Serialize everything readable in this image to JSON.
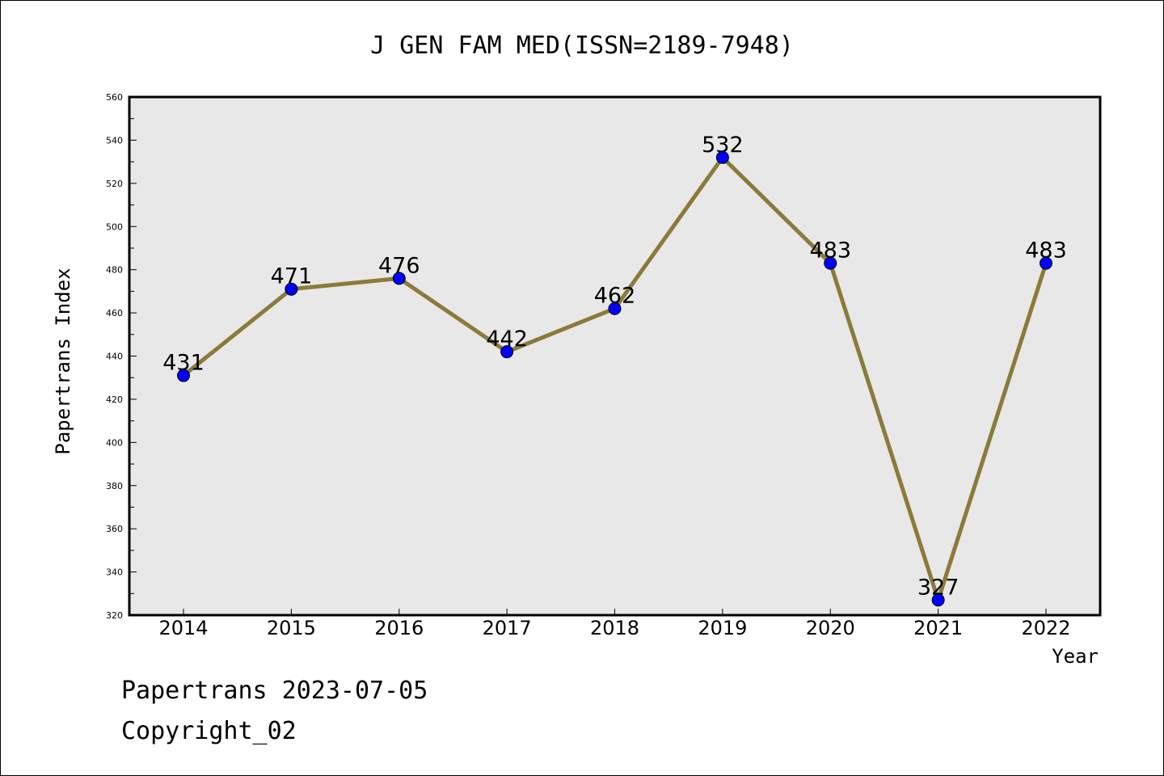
{
  "chart_data": {
    "type": "line",
    "title": "J GEN FAM MED(ISSN=2189-7948)",
    "xlabel": "Year",
    "ylabel": "Papertrans Index",
    "categories": [
      "2014",
      "2015",
      "2016",
      "2017",
      "2018",
      "2019",
      "2020",
      "2021",
      "2022"
    ],
    "series": [
      {
        "values": [
          431,
          471,
          476,
          442,
          462,
          532,
          483,
          327,
          483
        ]
      }
    ],
    "data_labels": [
      "431",
      "471",
      "476",
      "442",
      "462",
      "532",
      "483",
      "327",
      "483"
    ],
    "ylim": [
      320,
      560
    ],
    "yticks": [
      320,
      340,
      360,
      380,
      400,
      420,
      440,
      460,
      480,
      500,
      520,
      540,
      560
    ],
    "ytick_labels": [
      "320",
      "340",
      "360",
      "380",
      "400",
      "420",
      "440",
      "460",
      "480",
      "500",
      "520",
      "540",
      "560"
    ],
    "grid": false,
    "line_color": "#8b7a3a",
    "marker_color": "#0000ff",
    "plot_background": "#e8e8e8"
  },
  "footer": {
    "line1": "Papertrans 2023-07-05",
    "line2": "Copyright_02"
  }
}
